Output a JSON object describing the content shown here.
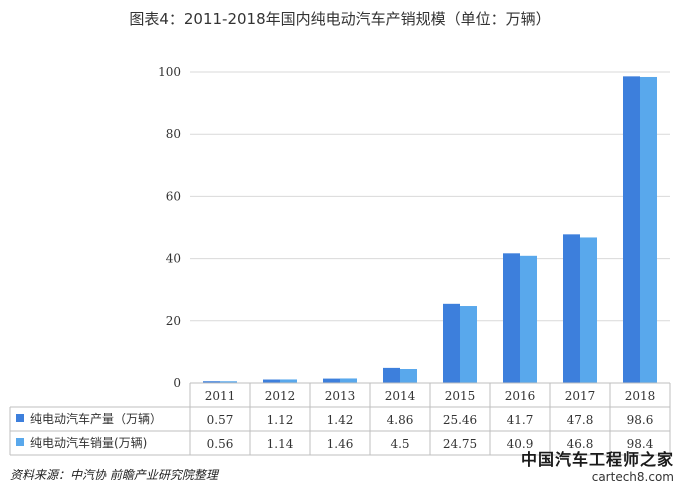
{
  "title": "图表4：2011-2018年国内纯电动汽车产销规模（单位：万辆）",
  "source": "资料来源：中汽协 前瞻产业研究院整理",
  "watermark": {
    "cn": "中国汽车工程师之家",
    "en": "cartech8.com"
  },
  "colors": {
    "production": "#3d7fdc",
    "sales": "#59a8ec",
    "grid": "#d9d9d9",
    "border": "#bfbfbf"
  },
  "chart_data": {
    "type": "bar",
    "categories": [
      "2011",
      "2012",
      "2013",
      "2014",
      "2015",
      "2016",
      "2017",
      "2018"
    ],
    "series": [
      {
        "name": "纯电动汽车产量（万辆）",
        "values": [
          0.57,
          1.12,
          1.42,
          4.86,
          25.46,
          41.7,
          47.8,
          98.6
        ]
      },
      {
        "name": "纯电动汽车销量(万辆)",
        "values": [
          0.56,
          1.14,
          1.46,
          4.5,
          24.75,
          40.9,
          46.8,
          98.4
        ]
      }
    ],
    "value_labels": [
      [
        "0.57",
        "1.12",
        "1.42",
        "4.86",
        "25.46",
        "41.7",
        "47.8",
        "98.6"
      ],
      [
        "0.56",
        "1.14",
        "1.46",
        "4.5",
        "24.75",
        "40.9",
        "46.8",
        "98.4"
      ]
    ],
    "yticks": [
      "0",
      "20",
      "40",
      "60",
      "80",
      "100"
    ],
    "ylim": [
      0,
      100
    ],
    "grid": true,
    "legend": "data-table"
  }
}
